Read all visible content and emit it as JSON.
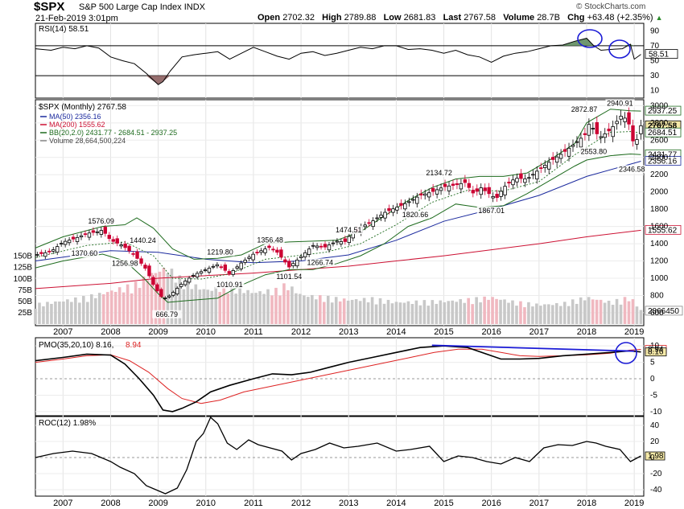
{
  "header": {
    "symbol": "$SPX",
    "name": "S&P 500 Large Cap Index",
    "exchange": "INDX",
    "date": "21-Feb-2019 3:01pm",
    "open_label": "Open",
    "open": "2702.32",
    "high_label": "High",
    "high": "2789.88",
    "low_label": "Low",
    "low": "2681.83",
    "last_label": "Last",
    "last": "2767.58",
    "volume_label": "Volume",
    "volume": "28.7B",
    "chg_label": "Chg",
    "chg": "+63.48 (+2.35%)",
    "credit": "© StockCharts.com"
  },
  "colors": {
    "up": "#000000",
    "down": "#cc0033",
    "ma50": "#1b2a9e",
    "ma200": "#cc1133",
    "bb": "#1e6b1e",
    "volume_up": "#c8c8c8",
    "volume_down": "#f0b8c0",
    "rsi_fill": "#5f8c5f",
    "rsi_fill_low": "#8c5f5f",
    "pmo_signal": "#dd2222",
    "annotation": "#1a1ad6",
    "badge": "#f5e9a8"
  },
  "chart_data": [
    {
      "type": "line",
      "panel": "rsi",
      "title": "RSI(14) 58.51",
      "ylim": [
        0,
        100
      ],
      "ticks": [
        "90",
        "70",
        "50",
        "30",
        "10"
      ],
      "reference_lines": [
        70,
        30
      ],
      "x": [
        2006.42,
        2006.75,
        2007.0,
        2007.25,
        2007.5,
        2007.75,
        2008.0,
        2008.25,
        2008.5,
        2008.75,
        2009.0,
        2009.1,
        2009.25,
        2009.5,
        2009.75,
        2010.0,
        2010.25,
        2010.5,
        2010.75,
        2011.0,
        2011.25,
        2011.5,
        2011.75,
        2012.0,
        2012.25,
        2012.5,
        2012.75,
        2013.0,
        2013.25,
        2013.5,
        2013.75,
        2014.0,
        2014.25,
        2014.5,
        2014.75,
        2015.0,
        2015.25,
        2015.5,
        2015.75,
        2016.0,
        2016.25,
        2016.5,
        2016.75,
        2017.0,
        2017.25,
        2017.5,
        2017.75,
        2018.0,
        2018.15,
        2018.3,
        2018.5,
        2018.75,
        2018.92,
        2019.0,
        2019.14
      ],
      "values": [
        66,
        64,
        68,
        66,
        70,
        67,
        55,
        50,
        46,
        33,
        18,
        22,
        36,
        55,
        58,
        60,
        62,
        52,
        60,
        68,
        62,
        56,
        52,
        60,
        62,
        57,
        60,
        64,
        68,
        66,
        70,
        70,
        65,
        66,
        64,
        60,
        64,
        58,
        55,
        48,
        56,
        60,
        62,
        66,
        70,
        71,
        76,
        80,
        70,
        64,
        65,
        66,
        72,
        52,
        58.51
      ],
      "series_value": "58.51",
      "badge": "58.51"
    },
    {
      "type": "candlestick",
      "panel": "price",
      "title": "$SPX (Monthly) 2767.58",
      "x_ticks": [
        "2007",
        "2008",
        "2009",
        "2010",
        "2011",
        "2012",
        "2013",
        "2014",
        "2015",
        "2016",
        "2017",
        "2018",
        "2019"
      ],
      "y_ticks": [
        "3000",
        "2800",
        "2600",
        "2400",
        "2200",
        "2000",
        "1800",
        "1600",
        "1400",
        "1200",
        "1000",
        "800",
        "600"
      ],
      "ylim": [
        590,
        3050
      ],
      "legend": [
        {
          "name": "MA(50) 2356.16",
          "color": "#1b2a9e"
        },
        {
          "name": "MA(200) 1555.62",
          "color": "#cc1133"
        },
        {
          "name": "BB(20,2.0) 2431.77 - 2684.51 - 2937.25",
          "color": "#1e6b1e"
        },
        {
          "name": "Volume 28,664,500,224",
          "color": "#888888"
        }
      ],
      "close_path": {
        "x": [
          2006.42,
          2006.75,
          2007.0,
          2007.25,
          2007.5,
          2007.75,
          2007.83,
          2008.0,
          2008.25,
          2008.5,
          2008.75,
          2008.92,
          2009.1,
          2009.25,
          2009.5,
          2009.75,
          2010.0,
          2010.25,
          2010.5,
          2010.75,
          2011.0,
          2011.25,
          2011.35,
          2011.5,
          2011.75,
          2012.0,
          2012.25,
          2012.5,
          2012.75,
          2012.92,
          2013.0,
          2013.25,
          2013.5,
          2013.75,
          2014.0,
          2014.25,
          2014.5,
          2014.75,
          2015.0,
          2015.25,
          2015.45,
          2015.65,
          2015.75,
          2016.1,
          2016.25,
          2016.5,
          2016.75,
          2017.0,
          2017.25,
          2017.5,
          2017.75,
          2018.0,
          2018.08,
          2018.15,
          2018.3,
          2018.5,
          2018.75,
          2018.92,
          2019.0,
          2019.14
        ],
        "values": [
          1270,
          1310,
          1420,
          1460,
          1520,
          1540,
          1560,
          1440,
          1380,
          1270,
          1100,
          900,
          760,
          800,
          940,
          1040,
          1100,
          1160,
          1050,
          1180,
          1280,
          1340,
          1360,
          1300,
          1130,
          1250,
          1380,
          1360,
          1430,
          1420,
          1480,
          1590,
          1660,
          1760,
          1820,
          1880,
          1960,
          2000,
          2060,
          2080,
          2110,
          1960,
          2060,
          1920,
          2050,
          2160,
          2150,
          2260,
          2360,
          2450,
          2560,
          2680,
          2850,
          2700,
          2640,
          2720,
          2900,
          2760,
          2500,
          2767
        ]
      },
      "ma50": {
        "x": [
          2006.42,
          2008.0,
          2009.0,
          2010.0,
          2011.0,
          2012.0,
          2013.0,
          2014.0,
          2015.0,
          2016.0,
          2017.0,
          2018.0,
          2019.14
        ],
        "values": [
          1200,
          1320,
          1300,
          1220,
          1180,
          1200,
          1270,
          1440,
          1660,
          1800,
          1960,
          2180,
          2356.16
        ]
      },
      "ma200": {
        "x": [
          2006.42,
          2008.0,
          2009.0,
          2010.0,
          2011.0,
          2012.0,
          2013.0,
          2014.0,
          2015.0,
          2016.0,
          2017.0,
          2018.0,
          2019.14
        ],
        "values": [
          880,
          940,
          1000,
          1030,
          1060,
          1100,
          1140,
          1200,
          1260,
          1330,
          1400,
          1480,
          1555.62
        ]
      },
      "bb_upper": {
        "x": [
          2006.42,
          2007.0,
          2007.83,
          2008.3,
          2008.55,
          2008.9,
          2009.3,
          2009.75,
          2010.25,
          2010.75,
          2011.25,
          2011.75,
          2012.25,
          2012.75,
          2013.25,
          2013.75,
          2014.25,
          2014.75,
          2015.25,
          2015.75,
          2016.25,
          2016.75,
          2017.25,
          2017.75,
          2018.0,
          2018.5,
          2018.92,
          2019.14
        ],
        "values": [
          1350,
          1480,
          1600,
          1620,
          1700,
          1580,
          1340,
          1220,
          1230,
          1270,
          1400,
          1420,
          1430,
          1440,
          1540,
          1720,
          1900,
          2050,
          2150,
          2180,
          2180,
          2220,
          2380,
          2560,
          2800,
          2960,
          2940,
          2937.25
        ]
      },
      "bb_lower": {
        "x": [
          2006.42,
          2007.0,
          2007.83,
          2008.3,
          2008.7,
          2009.0,
          2009.2,
          2009.6,
          2010.25,
          2010.75,
          2011.25,
          2011.75,
          2012.25,
          2012.75,
          2013.25,
          2013.75,
          2014.25,
          2014.75,
          2015.25,
          2015.75,
          2016.25,
          2016.75,
          2017.25,
          2017.75,
          2018.0,
          2018.5,
          2018.92,
          2019.14
        ],
        "values": [
          1120,
          1200,
          1280,
          1200,
          1000,
          820,
          720,
          740,
          770,
          920,
          1040,
          1100,
          1100,
          1170,
          1260,
          1400,
          1600,
          1700,
          1860,
          1820,
          1840,
          1980,
          2140,
          2300,
          2370,
          2420,
          2440,
          2431.77
        ]
      },
      "bb_mid": {
        "x": [
          2006.42,
          2007.5,
          2008.3,
          2008.9,
          2009.3,
          2009.9,
          2010.5,
          2011.25,
          2011.9,
          2012.5,
          2013.25,
          2014.0,
          2014.75,
          2015.5,
          2016.25,
          2017.0,
          2017.75,
          2018.5,
          2018.92,
          2019.14
        ],
        "values": [
          1240,
          1380,
          1420,
          1260,
          1000,
          990,
          1050,
          1220,
          1260,
          1300,
          1400,
          1620,
          1880,
          2020,
          2010,
          2120,
          2430,
          2690,
          2700,
          2684.51
        ]
      },
      "annotations": [
        {
          "x": 2007.8,
          "y": 1576.09,
          "text": "1576.09",
          "pos": "above"
        },
        {
          "x": 2008.3,
          "y": 1440.24,
          "text": "1440.24",
          "pos": "right"
        },
        {
          "x": 2007.45,
          "y": 1370.6,
          "text": "1370.60",
          "pos": "below"
        },
        {
          "x": 2008.3,
          "y": 1256.98,
          "text": "1256.98",
          "pos": "below"
        },
        {
          "x": 2009.18,
          "y": 666.79,
          "text": "666.79",
          "pos": "below"
        },
        {
          "x": 2010.3,
          "y": 1219.8,
          "text": "1219.80",
          "pos": "above"
        },
        {
          "x": 2010.5,
          "y": 1010.91,
          "text": "1010.91",
          "pos": "below"
        },
        {
          "x": 2011.35,
          "y": 1356.48,
          "text": "1356.48",
          "pos": "above"
        },
        {
          "x": 2011.75,
          "y": 1101.54,
          "text": "1101.54",
          "pos": "below"
        },
        {
          "x": 2012.4,
          "y": 1266.74,
          "text": "1266.74",
          "pos": "below"
        },
        {
          "x": 2013.0,
          "y": 1474.51,
          "text": "1474.51",
          "pos": "above"
        },
        {
          "x": 2014.9,
          "y": 2134.72,
          "text": "2134.72",
          "pos": "above"
        },
        {
          "x": 2014.4,
          "y": 1820.66,
          "text": "1820.66",
          "pos": "below"
        },
        {
          "x": 2016.0,
          "y": 1867.01,
          "text": "1867.01",
          "pos": "below"
        },
        {
          "x": 2017.95,
          "y": 2872.87,
          "text": "2872.87",
          "pos": "above"
        },
        {
          "x": 2018.7,
          "y": 2940.91,
          "text": "2940.91",
          "pos": "above"
        },
        {
          "x": 2018.15,
          "y": 2553.8,
          "text": "2553.80",
          "pos": "below"
        },
        {
          "x": 2018.95,
          "y": 2346.58,
          "text": "2346.58",
          "pos": "below"
        }
      ],
      "badges": [
        {
          "value": 2937.25,
          "text": "2937.25",
          "style": "green"
        },
        {
          "value": 2767.58,
          "text": "2767.58",
          "style": "last"
        },
        {
          "value": 2684.51,
          "text": "2684.51",
          "style": "green"
        },
        {
          "value": 2431.77,
          "text": "2431.77",
          "style": "green"
        },
        {
          "value": 2356.16,
          "text": "2356.16",
          "style": "blue"
        },
        {
          "value": 1555.62,
          "text": "1555.62",
          "style": "red"
        }
      ]
    },
    {
      "type": "bar",
      "panel": "volume",
      "y_ticks": [
        "150B",
        "125B",
        "100B",
        "75B",
        "50B",
        "25B"
      ],
      "ylim": [
        0,
        160
      ],
      "x": [
        2006.42,
        2007.0,
        2007.5,
        2008.0,
        2008.5,
        2008.8,
        2009.0,
        2009.2,
        2009.5,
        2010.0,
        2010.5,
        2011.0,
        2011.5,
        2011.7,
        2012.0,
        2012.5,
        2013.0,
        2013.5,
        2014.0,
        2014.5,
        2015.0,
        2015.5,
        2016.0,
        2016.5,
        2017.0,
        2017.5,
        2018.0,
        2018.5,
        2018.92,
        2019.14
      ],
      "values": [
        40,
        48,
        55,
        68,
        80,
        100,
        110,
        115,
        90,
        70,
        78,
        65,
        70,
        82,
        60,
        55,
        50,
        52,
        45,
        46,
        47,
        50,
        55,
        45,
        40,
        42,
        55,
        45,
        55,
        28.66
      ],
      "badge": "28664500224"
    },
    {
      "type": "line",
      "panel": "pmo",
      "title": "PMO(35,20,10) 8.16, 8.94",
      "ylim": [
        -11,
        12
      ],
      "y_ticks": [
        "10",
        "5",
        "0",
        "-5",
        "-10"
      ],
      "series": [
        {
          "name": "PMO 8.16",
          "x": [
            2006.42,
            2007.0,
            2007.5,
            2008.0,
            2008.3,
            2008.6,
            2008.9,
            2009.1,
            2009.3,
            2009.5,
            2009.8,
            2010.1,
            2010.5,
            2011.0,
            2011.4,
            2011.8,
            2012.2,
            2012.6,
            2013.0,
            2013.5,
            2014.0,
            2014.5,
            2015.0,
            2015.5,
            2015.9,
            2016.2,
            2016.6,
            2017.0,
            2017.5,
            2018.0,
            2018.5,
            2018.9,
            2019.14
          ],
          "values": [
            5.5,
            6.5,
            7.5,
            7.2,
            4.5,
            0,
            -5,
            -9.5,
            -10,
            -9,
            -7,
            -4,
            -2,
            0,
            1.5,
            1.2,
            2,
            3.5,
            5,
            6.5,
            8,
            9.5,
            10,
            9.5,
            7.5,
            6,
            6,
            6.2,
            7,
            7.5,
            8,
            8.5,
            8.16
          ]
        },
        {
          "name": "Signal 8.94",
          "x": [
            2006.42,
            2007.0,
            2007.5,
            2008.0,
            2008.4,
            2008.8,
            2009.2,
            2009.5,
            2009.9,
            2010.3,
            2010.8,
            2011.3,
            2011.8,
            2012.3,
            2012.8,
            2013.3,
            2013.8,
            2014.3,
            2014.8,
            2015.3,
            2015.8,
            2016.2,
            2016.6,
            2017.0,
            2017.5,
            2018.0,
            2018.5,
            2018.9,
            2019.14
          ],
          "values": [
            5,
            6,
            7,
            7.3,
            5.5,
            2,
            -3,
            -6,
            -7.5,
            -6.5,
            -4,
            -2.5,
            -1,
            0.5,
            2,
            3.5,
            5,
            6.5,
            8,
            9,
            9,
            8,
            7,
            6.8,
            7,
            7.3,
            7.8,
            8.7,
            8.94
          ]
        }
      ],
      "trend_line": {
        "x": [
          2014.75,
          2019.0
        ],
        "values": [
          10.2,
          8.4
        ]
      },
      "badges": [
        {
          "value": 8.94,
          "text": "8.94",
          "style": "red"
        },
        {
          "value": 8.16,
          "text": "8.16",
          "style": "last"
        }
      ]
    },
    {
      "type": "line",
      "panel": "roc",
      "title": "ROC(12) 1.98%",
      "ylim": [
        -46,
        50
      ],
      "y_ticks": [
        "40",
        "20",
        "0",
        "-20",
        "-40"
      ],
      "x": [
        2006.42,
        2006.8,
        2007.2,
        2007.6,
        2008.0,
        2008.2,
        2008.5,
        2008.75,
        2008.95,
        2009.15,
        2009.4,
        2009.6,
        2009.8,
        2009.95,
        2010.1,
        2010.25,
        2010.45,
        2010.65,
        2010.9,
        2011.1,
        2011.35,
        2011.6,
        2011.8,
        2012.0,
        2012.3,
        2012.6,
        2012.9,
        2013.2,
        2013.6,
        2014.0,
        2014.3,
        2014.7,
        2015.0,
        2015.3,
        2015.6,
        2015.9,
        2016.2,
        2016.5,
        2016.8,
        2017.1,
        2017.4,
        2017.7,
        2018.0,
        2018.2,
        2018.4,
        2018.7,
        2018.92,
        2019.14
      ],
      "values": [
        0,
        5,
        8,
        5,
        -5,
        -12,
        -20,
        -35,
        -40,
        -45,
        -38,
        -15,
        20,
        30,
        50,
        42,
        18,
        10,
        22,
        16,
        12,
        8,
        -3,
        5,
        10,
        18,
        12,
        14,
        18,
        8,
        10,
        14,
        -5,
        2,
        0,
        -5,
        -8,
        0,
        -5,
        12,
        16,
        15,
        20,
        18,
        14,
        10,
        -5,
        1.98
      ],
      "badge": "1.98"
    }
  ],
  "x_axis_labels": [
    "2007",
    "2008",
    "2009",
    "2010",
    "2011",
    "2012",
    "2013",
    "2014",
    "2015",
    "2016",
    "2017",
    "2018",
    "2019"
  ],
  "rsi_scale": [
    "90",
    "70",
    "50",
    "30",
    "10"
  ]
}
